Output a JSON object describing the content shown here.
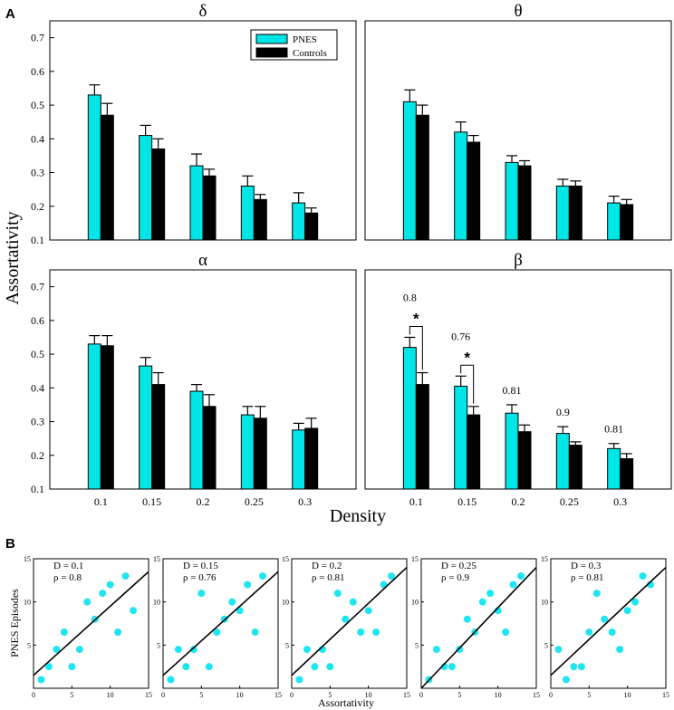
{
  "panel_labels": {
    "a": "A",
    "b": "B"
  },
  "colors": {
    "pnes": "#00e5e5",
    "controls": "#000000",
    "fit_line": "#000000",
    "scatter": "#1ee6f0"
  },
  "chart_data": [
    {
      "id": "bar-delta",
      "type": "bar",
      "title": "δ",
      "categories": [
        "0.1",
        "0.15",
        "0.2",
        "0.25",
        "0.3"
      ],
      "ylim": [
        0.1,
        0.75
      ],
      "yticks": [
        "0.1",
        "0.2",
        "0.3",
        "0.4",
        "0.5",
        "0.6",
        "0.7"
      ],
      "ytick_values": [
        0.1,
        0.2,
        0.3,
        0.4,
        0.5,
        0.6,
        0.7
      ],
      "series": [
        {
          "name": "PNES",
          "values": [
            0.53,
            0.41,
            0.32,
            0.26,
            0.21
          ],
          "errors": [
            0.03,
            0.03,
            0.035,
            0.03,
            0.03
          ]
        },
        {
          "name": "Controls",
          "values": [
            0.47,
            0.37,
            0.29,
            0.22,
            0.18
          ],
          "errors": [
            0.035,
            0.03,
            0.02,
            0.015,
            0.015
          ]
        }
      ],
      "legend": {
        "entries": [
          "PNES",
          "Controls"
        ],
        "placement": "top-right"
      }
    },
    {
      "id": "bar-theta",
      "type": "bar",
      "title": "θ",
      "categories": [
        "0.1",
        "0.15",
        "0.2",
        "0.25",
        "0.3"
      ],
      "ylim": [
        0.1,
        0.75
      ],
      "series": [
        {
          "name": "PNES",
          "values": [
            0.51,
            0.42,
            0.33,
            0.26,
            0.21
          ],
          "errors": [
            0.035,
            0.03,
            0.02,
            0.02,
            0.02
          ]
        },
        {
          "name": "Controls",
          "values": [
            0.47,
            0.39,
            0.32,
            0.26,
            0.205
          ],
          "errors": [
            0.03,
            0.02,
            0.015,
            0.015,
            0.015
          ]
        }
      ]
    },
    {
      "id": "bar-alpha",
      "type": "bar",
      "title": "α",
      "categories": [
        "0.1",
        "0.15",
        "0.2",
        "0.25",
        "0.3"
      ],
      "ylim": [
        0.1,
        0.75
      ],
      "yticks": [
        "0.1",
        "0.2",
        "0.3",
        "0.4",
        "0.5",
        "0.6",
        "0.7"
      ],
      "ytick_values": [
        0.1,
        0.2,
        0.3,
        0.4,
        0.5,
        0.6,
        0.7
      ],
      "show_xticks": true,
      "series": [
        {
          "name": "PNES",
          "values": [
            0.53,
            0.465,
            0.39,
            0.32,
            0.275
          ],
          "errors": [
            0.025,
            0.025,
            0.02,
            0.025,
            0.02
          ]
        },
        {
          "name": "Controls",
          "values": [
            0.525,
            0.41,
            0.345,
            0.31,
            0.28
          ],
          "errors": [
            0.03,
            0.035,
            0.035,
            0.035,
            0.03
          ]
        }
      ]
    },
    {
      "id": "bar-beta",
      "type": "bar",
      "title": "β",
      "categories": [
        "0.1",
        "0.15",
        "0.2",
        "0.25",
        "0.3"
      ],
      "ylim": [
        0.1,
        0.75
      ],
      "show_xticks": true,
      "series": [
        {
          "name": "PNES",
          "values": [
            0.52,
            0.405,
            0.325,
            0.265,
            0.22
          ],
          "errors": [
            0.03,
            0.03,
            0.025,
            0.02,
            0.015
          ]
        },
        {
          "name": "Controls",
          "values": [
            0.41,
            0.32,
            0.27,
            0.23,
            0.19
          ],
          "errors": [
            0.035,
            0.025,
            0.02,
            0.01,
            0.015
          ]
        }
      ],
      "annotations": [
        "0.8",
        "0.76",
        "0.81",
        "0.9",
        "0.81"
      ],
      "significance": [
        "*",
        "*"
      ]
    }
  ],
  "bar_axes": {
    "ylabel": "Assortativity",
    "xlabel": "Density"
  },
  "scatter_panels": [
    {
      "type": "scatter",
      "D_label": "D = 0.1",
      "rho_label": "ρ = 0.8",
      "x": [
        1,
        2,
        3,
        4,
        5,
        6,
        7,
        8,
        9,
        10,
        11,
        12,
        13
      ],
      "y": [
        1,
        2.5,
        4.5,
        6.5,
        2.5,
        4.5,
        10,
        8,
        11,
        12,
        6.5,
        13,
        9
      ],
      "fit": [
        0,
        1.5,
        15,
        13.5
      ]
    },
    {
      "type": "scatter",
      "D_label": "D = 0.15",
      "rho_label": "ρ = 0.76",
      "x": [
        1,
        2,
        3,
        4,
        5,
        6,
        7,
        8,
        9,
        10,
        11,
        12,
        13
      ],
      "y": [
        1,
        4.5,
        2.5,
        4.5,
        11,
        2.5,
        6.5,
        8,
        10,
        9,
        12,
        6.5,
        13
      ],
      "fit": [
        0,
        1.5,
        15,
        13.5
      ]
    },
    {
      "type": "scatter",
      "D_label": "D = 0.2",
      "rho_label": "ρ = 0.81",
      "x": [
        1,
        2,
        3,
        4,
        5,
        6,
        7,
        8,
        9,
        10,
        11,
        12,
        13
      ],
      "y": [
        1,
        4.5,
        2.5,
        4.5,
        2.5,
        11,
        8,
        10,
        6.5,
        9,
        6.5,
        12,
        13
      ],
      "fit": [
        0,
        1.5,
        15,
        14
      ]
    },
    {
      "type": "scatter",
      "D_label": "D = 0.25",
      "rho_label": "ρ = 0.9",
      "x": [
        1,
        2,
        3,
        4,
        5,
        6,
        7,
        8,
        9,
        10,
        11,
        12,
        13
      ],
      "y": [
        1,
        4.5,
        2.5,
        2.5,
        4.5,
        8,
        6.5,
        10,
        11,
        9,
        6.5,
        12,
        13
      ],
      "fit": [
        0,
        0,
        15,
        14
      ]
    },
    {
      "type": "scatter",
      "D_label": "D = 0.3",
      "rho_label": "ρ = 0.81",
      "x": [
        1,
        2,
        3,
        4,
        5,
        6,
        7,
        8,
        9,
        10,
        11,
        12,
        13
      ],
      "y": [
        4.5,
        1,
        2.5,
        2.5,
        6.5,
        11,
        8,
        6.5,
        4.5,
        9,
        10,
        13,
        12
      ],
      "fit": [
        0,
        1.5,
        15,
        14
      ]
    }
  ],
  "scatter_axes": {
    "xlabel": "Assortativity",
    "ylabel": "PNES Episodes",
    "xlim": [
      0,
      15
    ],
    "ylim": [
      0,
      15
    ],
    "xticks": [
      "0",
      "5",
      "10",
      "15"
    ],
    "xtick_values": [
      0,
      5,
      10,
      15
    ],
    "yticks": [
      "5",
      "10",
      "15"
    ],
    "ytick_values": [
      5,
      10,
      15
    ]
  }
}
